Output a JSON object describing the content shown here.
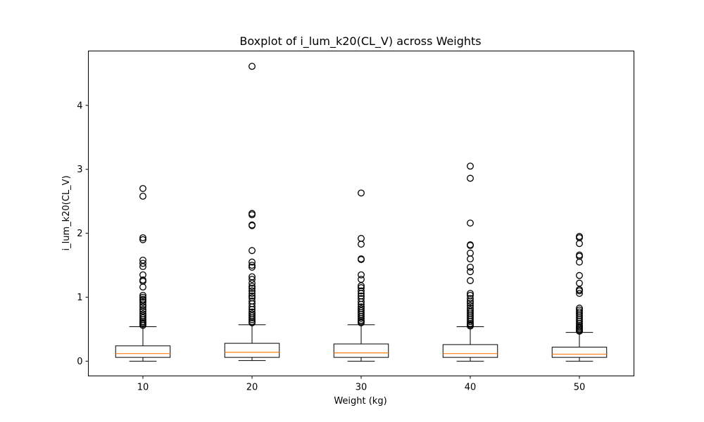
{
  "chart_data": {
    "type": "boxplot",
    "title": "Boxplot of i_lum_k20(CL_V) across Weights",
    "xlabel": "Weight (kg)",
    "ylabel": "i_lum_k20(CL_V)",
    "ylim": [
      -0.23,
      4.85
    ],
    "y_ticks": [
      0,
      1,
      2,
      3,
      4
    ],
    "grid": false,
    "legend": "none",
    "colors": {
      "box": "#000000",
      "median": "#ff7f0e",
      "flier": "#000000"
    },
    "categories": [
      "10",
      "20",
      "30",
      "40",
      "50"
    ],
    "boxes": [
      {
        "category": "10",
        "whisker_low": 0.0,
        "q1": 0.06,
        "median": 0.12,
        "q3": 0.24,
        "whisker_high": 0.54,
        "outliers": [
          2.7,
          2.58,
          1.93,
          1.9,
          1.58,
          1.53,
          1.48,
          1.35,
          1.27,
          1.25,
          1.16,
          1.03,
          1.0,
          0.97,
          0.95,
          0.92,
          0.88,
          0.85,
          0.81,
          0.78,
          0.74,
          0.71,
          0.68,
          0.65,
          0.62,
          0.6,
          0.58,
          0.56
        ]
      },
      {
        "category": "20",
        "whisker_low": 0.01,
        "q1": 0.06,
        "median": 0.14,
        "q3": 0.28,
        "whisker_high": 0.57,
        "outliers": [
          4.61,
          2.31,
          2.29,
          2.13,
          2.12,
          1.73,
          1.55,
          1.5,
          1.47,
          1.32,
          1.28,
          1.22,
          1.17,
          1.14,
          1.1,
          1.06,
          1.02,
          0.99,
          0.94,
          0.9,
          0.85,
          0.81,
          0.77,
          0.74,
          0.71,
          0.68,
          0.65,
          0.62,
          0.6
        ]
      },
      {
        "category": "30",
        "whisker_low": 0.0,
        "q1": 0.06,
        "median": 0.13,
        "q3": 0.27,
        "whisker_high": 0.57,
        "outliers": [
          2.63,
          1.92,
          1.83,
          1.6,
          1.59,
          1.35,
          1.28,
          1.18,
          1.15,
          1.1,
          1.06,
          1.02,
          0.98,
          0.93,
          0.89,
          0.85,
          0.82,
          0.79,
          0.76,
          0.73,
          0.7,
          0.67,
          0.64,
          0.62,
          0.6
        ]
      },
      {
        "category": "40",
        "whisker_low": 0.0,
        "q1": 0.06,
        "median": 0.12,
        "q3": 0.26,
        "whisker_high": 0.54,
        "outliers": [
          3.05,
          2.86,
          2.16,
          1.82,
          1.81,
          1.69,
          1.6,
          1.47,
          1.4,
          1.26,
          1.06,
          1.03,
          0.98,
          0.94,
          0.91,
          0.87,
          0.83,
          0.8,
          0.77,
          0.74,
          0.71,
          0.68,
          0.65,
          0.62,
          0.59,
          0.57,
          0.55
        ]
      },
      {
        "category": "50",
        "whisker_low": 0.0,
        "q1": 0.06,
        "median": 0.11,
        "q3": 0.22,
        "whisker_high": 0.45,
        "outliers": [
          1.95,
          1.93,
          1.84,
          1.66,
          1.64,
          1.55,
          1.34,
          1.22,
          1.12,
          1.1,
          1.06,
          0.83,
          0.8,
          0.77,
          0.74,
          0.71,
          0.68,
          0.65,
          0.62,
          0.59,
          0.56,
          0.54,
          0.52,
          0.5,
          0.48,
          0.47
        ]
      }
    ]
  }
}
